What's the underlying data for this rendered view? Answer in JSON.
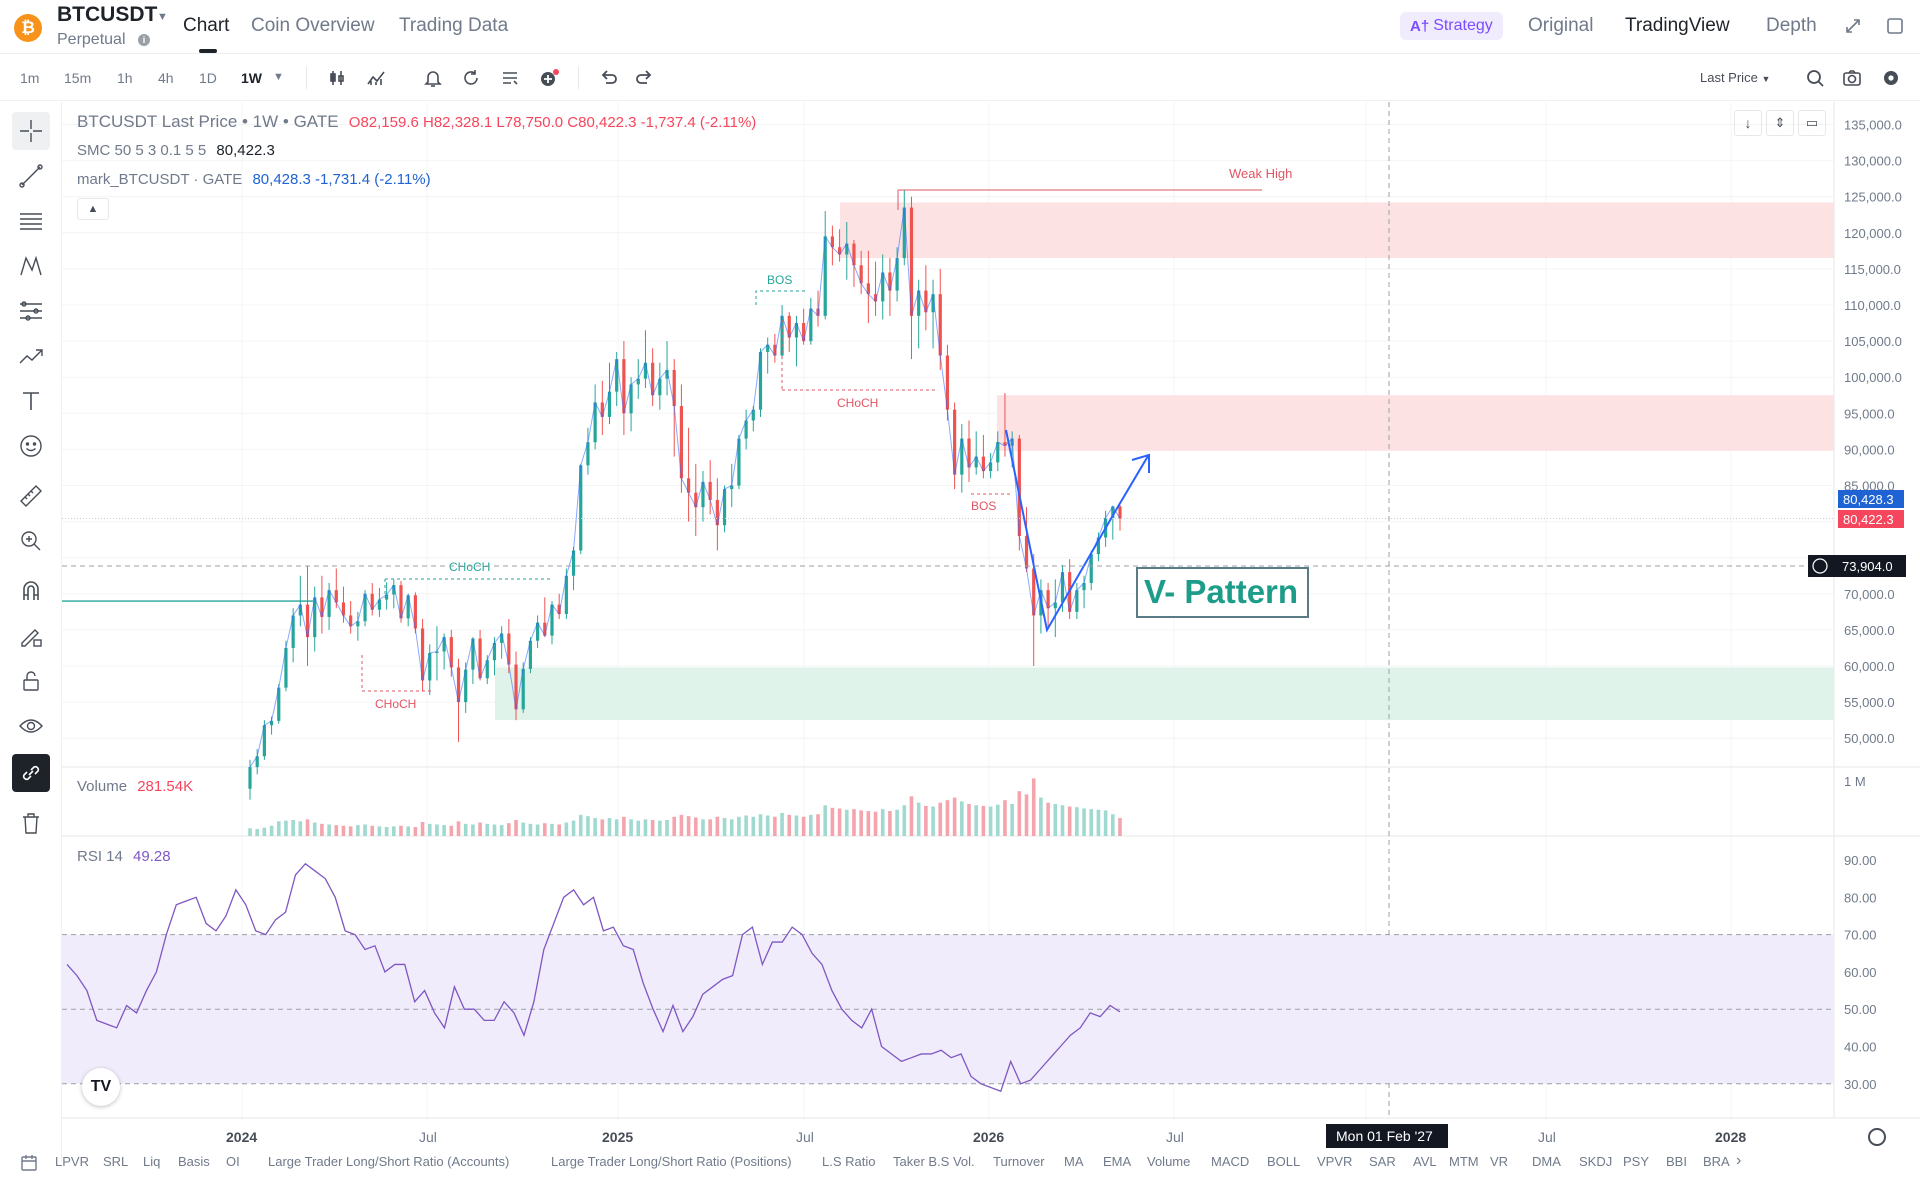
{
  "header": {
    "symbol": "BTCUSDT",
    "contract": "Perpetual",
    "tabs": [
      "Chart",
      "Coin Overview",
      "Trading Data"
    ],
    "strategy_label": "Strategy",
    "strategy_icon_text": "A†",
    "views": [
      "Original",
      "TradingView",
      "Depth"
    ]
  },
  "toolbar": {
    "intervals": [
      "1m",
      "15m",
      "1h",
      "4h",
      "1D",
      "1W"
    ],
    "active_interval": "1W",
    "price_type": "Last Price"
  },
  "legend": {
    "title": "BTCUSDT Last Price • 1W • GATE",
    "ohlc": "O82,159.6  H82,328.1  L78,750.0  C80,422.3  -1,737.4 (-2.11%)",
    "smc_label": "SMC 50 5 3 0.1 5 5",
    "smc_value": "80,422.3",
    "mark_label": "mark_BTCUSDT · GATE",
    "mark_value": "80,428.3  -1,731.4 (-2.11%)",
    "volume_label": "Volume",
    "volume_value": "281.54K",
    "rsi_label": "RSI 14",
    "rsi_value": "49.28"
  },
  "colors": {
    "up": "#26a69a",
    "down": "#ef5350",
    "accent": "#1e62d4",
    "rsi": "#7e57c2",
    "supply_zone": "#fde2e4",
    "demand_zone": "#dff3ea"
  },
  "chart_data": {
    "type": "candlestick",
    "instrument": "BTCUSDT Last Price · 1W · GATE",
    "price_axis": {
      "ticks": [
        "135,000.0",
        "130,000.0",
        "125,000.0",
        "120,000.0",
        "115,000.0",
        "110,000.0",
        "105,000.0",
        "100,000.0",
        "95,000.0",
        "90,000.0",
        "85,000.0",
        "70,000.0",
        "65,000.0",
        "60,000.0",
        "55,000.0",
        "50,000.0"
      ],
      "ylim": [
        45000,
        137000
      ]
    },
    "last_price": "80,422.3",
    "mark_price": "80,428.3",
    "crosshair_price": "73,904.0",
    "crosshair_date": "Mon 01 Feb '27",
    "time_axis": [
      "2024",
      "Jul",
      "2025",
      "Jul",
      "2026",
      "Jul",
      "Jul",
      "2028"
    ],
    "candles": [
      [
        43000,
        47000,
        41500,
        46000
      ],
      [
        46000,
        48500,
        45000,
        47500
      ],
      [
        47500,
        52500,
        47000,
        51800
      ],
      [
        51800,
        53000,
        50500,
        52400
      ],
      [
        52400,
        57500,
        52000,
        57000
      ],
      [
        57000,
        63500,
        56500,
        62500
      ],
      [
        62500,
        68000,
        60500,
        67000
      ],
      [
        67000,
        72500,
        65500,
        68500
      ],
      [
        68500,
        73800,
        60000,
        64000
      ],
      [
        64000,
        71000,
        62000,
        69500
      ],
      [
        69500,
        72500,
        64500,
        66800
      ],
      [
        66800,
        71500,
        65000,
        70500
      ],
      [
        70500,
        73500,
        68000,
        68800
      ],
      [
        68800,
        71000,
        66000,
        67000
      ],
      [
        67000,
        69000,
        64500,
        65500
      ],
      [
        65500,
        67500,
        63500,
        66200
      ],
      [
        66200,
        70500,
        65500,
        70000
      ],
      [
        70000,
        71500,
        67000,
        67800
      ],
      [
        67800,
        70800,
        66800,
        69200
      ],
      [
        69200,
        71600,
        67800,
        69900
      ],
      [
        69900,
        72000,
        68000,
        71200
      ],
      [
        71200,
        71800,
        66000,
        66600
      ],
      [
        66600,
        70000,
        65500,
        69800
      ],
      [
        69800,
        70200,
        64500,
        65200
      ],
      [
        65200,
        66500,
        56500,
        58000
      ],
      [
        58000,
        63000,
        56000,
        61800
      ],
      [
        61800,
        65500,
        58000,
        62000
      ],
      [
        62000,
        64500,
        59500,
        64000
      ],
      [
        64000,
        65000,
        58500,
        59800
      ],
      [
        59800,
        61000,
        49500,
        55000
      ],
      [
        55000,
        60500,
        53500,
        59500
      ],
      [
        59500,
        64000,
        57500,
        63800
      ],
      [
        63800,
        65000,
        58000,
        58300
      ],
      [
        58300,
        61500,
        57500,
        60800
      ],
      [
        60800,
        64000,
        58700,
        63200
      ],
      [
        63200,
        65500,
        61000,
        64500
      ],
      [
        64500,
        66500,
        59000,
        60200
      ],
      [
        60200,
        62000,
        52500,
        54000
      ],
      [
        54000,
        60500,
        53500,
        59600
      ],
      [
        59600,
        64000,
        59000,
        63500
      ],
      [
        63500,
        67000,
        62500,
        66000
      ],
      [
        66000,
        69500,
        64000,
        64200
      ],
      [
        64200,
        69000,
        63000,
        68500
      ],
      [
        68500,
        70000,
        66500,
        67200
      ],
      [
        67200,
        73500,
        66500,
        72500
      ],
      [
        72500,
        76500,
        70500,
        76000
      ],
      [
        76000,
        88000,
        75500,
        87800
      ],
      [
        87800,
        93000,
        86500,
        91000
      ],
      [
        91000,
        99000,
        90000,
        96500
      ],
      [
        96500,
        99500,
        92000,
        94500
      ],
      [
        94500,
        102000,
        93500,
        98000
      ],
      [
        98000,
        103500,
        96000,
        102500
      ],
      [
        102500,
        105000,
        92000,
        95000
      ],
      [
        95000,
        100000,
        92500,
        99000
      ],
      [
        99000,
        102500,
        97000,
        99800
      ],
      [
        99800,
        106500,
        98500,
        102000
      ],
      [
        102000,
        104000,
        96000,
        97500
      ],
      [
        97500,
        102000,
        95500,
        99800
      ],
      [
        99800,
        105000,
        97500,
        101000
      ],
      [
        101000,
        102500,
        89000,
        96000
      ],
      [
        96000,
        99000,
        84000,
        86000
      ],
      [
        86000,
        93000,
        80000,
        84000
      ],
      [
        84000,
        88000,
        78000,
        82000
      ],
      [
        82000,
        87000,
        80000,
        85500
      ],
      [
        85500,
        88500,
        81000,
        83000
      ],
      [
        83000,
        86000,
        76000,
        79500
      ],
      [
        79500,
        85000,
        78500,
        84500
      ],
      [
        84500,
        88000,
        82000,
        85000
      ],
      [
        85000,
        92000,
        84500,
        91500
      ],
      [
        91500,
        95500,
        90000,
        94000
      ],
      [
        94000,
        96000,
        92500,
        95500
      ],
      [
        95500,
        104000,
        94500,
        103500
      ],
      [
        103500,
        105500,
        100500,
        104500
      ],
      [
        104500,
        106000,
        102000,
        103000
      ],
      [
        103000,
        110000,
        102500,
        108500
      ],
      [
        108500,
        109000,
        103500,
        105500
      ],
      [
        105500,
        108500,
        101500,
        107500
      ],
      [
        107500,
        109500,
        104500,
        105000
      ],
      [
        105000,
        111000,
        104500,
        109500
      ],
      [
        109500,
        112000,
        107000,
        108500
      ],
      [
        108500,
        123000,
        108000,
        119500
      ],
      [
        119500,
        121000,
        115500,
        118000
      ],
      [
        118000,
        120500,
        116000,
        117000
      ],
      [
        117000,
        121500,
        113500,
        118500
      ],
      [
        118500,
        119000,
        112500,
        115500
      ],
      [
        115500,
        117500,
        111500,
        113000
      ],
      [
        113000,
        117500,
        107500,
        111500
      ],
      [
        111500,
        116000,
        108500,
        110500
      ],
      [
        110500,
        117000,
        108000,
        114500
      ],
      [
        114500,
        116500,
        108500,
        112000
      ],
      [
        112000,
        118000,
        110500,
        116500
      ],
      [
        116500,
        126000,
        115500,
        123500
      ],
      [
        123500,
        125000,
        102500,
        108500
      ],
      [
        108500,
        113500,
        104000,
        112000
      ],
      [
        112000,
        115500,
        106500,
        109000
      ],
      [
        109000,
        113500,
        104000,
        111500
      ],
      [
        111500,
        115000,
        101000,
        103000
      ],
      [
        103000,
        104500,
        94000,
        95500
      ],
      [
        95500,
        96500,
        84500,
        86500
      ],
      [
        86500,
        93500,
        84000,
        91500
      ],
      [
        91500,
        94000,
        85500,
        87500
      ],
      [
        87500,
        92500,
        86500,
        89000
      ],
      [
        89000,
        92000,
        86000,
        87000
      ],
      [
        87000,
        89500,
        86000,
        88200
      ],
      [
        88200,
        92500,
        87000,
        91000
      ],
      [
        91000,
        97800,
        89000,
        90500
      ],
      [
        90500,
        92500,
        87500,
        91500
      ],
      [
        91500,
        92000,
        76000,
        78000
      ],
      [
        78000,
        82000,
        73000,
        73500
      ],
      [
        73500,
        75500,
        60000,
        67000
      ],
      [
        67000,
        72000,
        64500,
        70500
      ],
      [
        70500,
        71500,
        65500,
        68000
      ],
      [
        68000,
        72000,
        64000,
        68800
      ],
      [
        68800,
        74000,
        67500,
        73000
      ],
      [
        73000,
        74800,
        66500,
        67500
      ],
      [
        67500,
        71500,
        66500,
        70500
      ],
      [
        70500,
        72500,
        68000,
        71500
      ],
      [
        71500,
        76000,
        70500,
        75500
      ],
      [
        75500,
        78500,
        74500,
        77800
      ],
      [
        77800,
        81500,
        76500,
        80500
      ],
      [
        80500,
        82200,
        77500,
        82100
      ],
      [
        82100,
        82300,
        78750,
        80422.3
      ]
    ],
    "volume": {
      "label": "Volume",
      "last": "281.54K",
      "axis_tick": "1 M",
      "values_k": [
        120,
        110,
        130,
        160,
        230,
        240,
        250,
        230,
        260,
        210,
        190,
        180,
        170,
        160,
        150,
        170,
        180,
        160,
        150,
        140,
        150,
        160,
        150,
        140,
        220,
        190,
        180,
        170,
        160,
        230,
        190,
        180,
        210,
        190,
        180,
        170,
        200,
        250,
        210,
        190,
        180,
        200,
        190,
        180,
        210,
        240,
        330,
        310,
        280,
        260,
        280,
        260,
        300,
        260,
        240,
        260,
        250,
        240,
        250,
        300,
        330,
        310,
        290,
        260,
        260,
        300,
        280,
        260,
        300,
        320,
        300,
        340,
        320,
        300,
        360,
        330,
        320,
        300,
        330,
        340,
        480,
        440,
        430,
        410,
        420,
        400,
        390,
        380,
        420,
        390,
        410,
        480,
        620,
        520,
        470,
        460,
        520,
        560,
        600,
        540,
        500,
        480,
        470,
        460,
        490,
        560,
        500,
        700,
        650,
        900,
        600,
        520,
        500,
        480,
        460,
        450,
        430,
        420,
        410,
        400,
        340,
        281
      ]
    },
    "rsi": {
      "label": "RSI 14",
      "last": "49.28",
      "axis_ticks": [
        "90.00",
        "80.00",
        "70.00",
        "60.00",
        "50.00",
        "40.00",
        "30.00"
      ],
      "levels": [
        70,
        50,
        30
      ],
      "values": [
        62,
        59,
        55,
        47,
        46,
        45,
        51,
        49,
        55,
        60,
        70,
        78,
        79,
        80,
        73,
        71,
        75,
        82,
        78,
        71,
        70,
        74,
        76,
        86,
        89,
        87,
        85,
        80,
        71,
        70,
        66,
        67,
        60,
        62,
        62,
        52,
        55,
        49,
        45,
        56,
        50,
        50,
        47,
        47,
        52,
        49,
        43,
        52,
        66,
        73,
        80,
        82,
        78,
        80,
        71,
        72,
        67,
        66,
        57,
        50,
        44,
        51,
        44,
        48,
        54,
        56,
        58,
        59,
        70,
        72,
        62,
        68,
        68,
        72,
        70,
        65,
        62,
        55,
        50,
        47,
        45,
        50,
        40,
        38,
        36,
        37,
        38,
        38,
        39,
        37,
        38,
        32,
        30,
        29,
        28,
        36,
        30,
        31,
        34,
        37,
        40,
        43,
        45,
        49,
        48,
        51,
        49.28
      ]
    },
    "annotations": [
      {
        "text": "Weak High",
        "kind": "level"
      },
      {
        "text": "BOS",
        "kind": "structure"
      },
      {
        "text": "CHoCH",
        "kind": "structure"
      },
      {
        "text": "CHoCH",
        "kind": "structure"
      },
      {
        "text": "CHoCH",
        "kind": "structure"
      },
      {
        "text": "BOS",
        "kind": "structure"
      },
      {
        "text": "V- Pattern",
        "kind": "drawing"
      }
    ],
    "zones": [
      {
        "type": "supply",
        "from": 116500,
        "to": 124200
      },
      {
        "type": "supply",
        "from": 89800,
        "to": 97500
      },
      {
        "type": "demand",
        "from": 52500,
        "to": 59800
      }
    ],
    "grid": true
  },
  "bottom_indicators": [
    "LPVR",
    "SRL",
    "Liq",
    "Basis",
    "OI",
    "Large Trader Long/Short Ratio (Accounts)",
    "Large Trader Long/Short Ratio (Positions)",
    "L.S Ratio",
    "Taker B.S Vol.",
    "Turnover",
    "MA",
    "EMA",
    "Volume",
    "MACD",
    "BOLL",
    "VPVR",
    "SAR",
    "AVL",
    "MTM",
    "VR",
    "DMA",
    "SKDJ",
    "PSY",
    "BBI",
    "BRA"
  ],
  "icons": [
    "bitcoin-icon",
    "info-icon",
    "expand-icon",
    "window-icon",
    "candle-type-icon",
    "indicators-icon",
    "alert-icon",
    "replay-icon",
    "template-icon",
    "add-icon",
    "undo-icon",
    "redo-icon",
    "search-icon",
    "camera-icon",
    "settings-icon",
    "crosshair-icon",
    "trend-line-icon",
    "fib-icon",
    "pattern-icon",
    "measure-icon",
    "path-icon",
    "text-icon",
    "emoji-icon",
    "ruler-icon",
    "zoom-icon",
    "magnet-icon",
    "lock-draw-icon",
    "lock-icon",
    "eye-icon",
    "link-icon",
    "trash-icon",
    "calendar-icon",
    "tradingview-logo-icon"
  ]
}
